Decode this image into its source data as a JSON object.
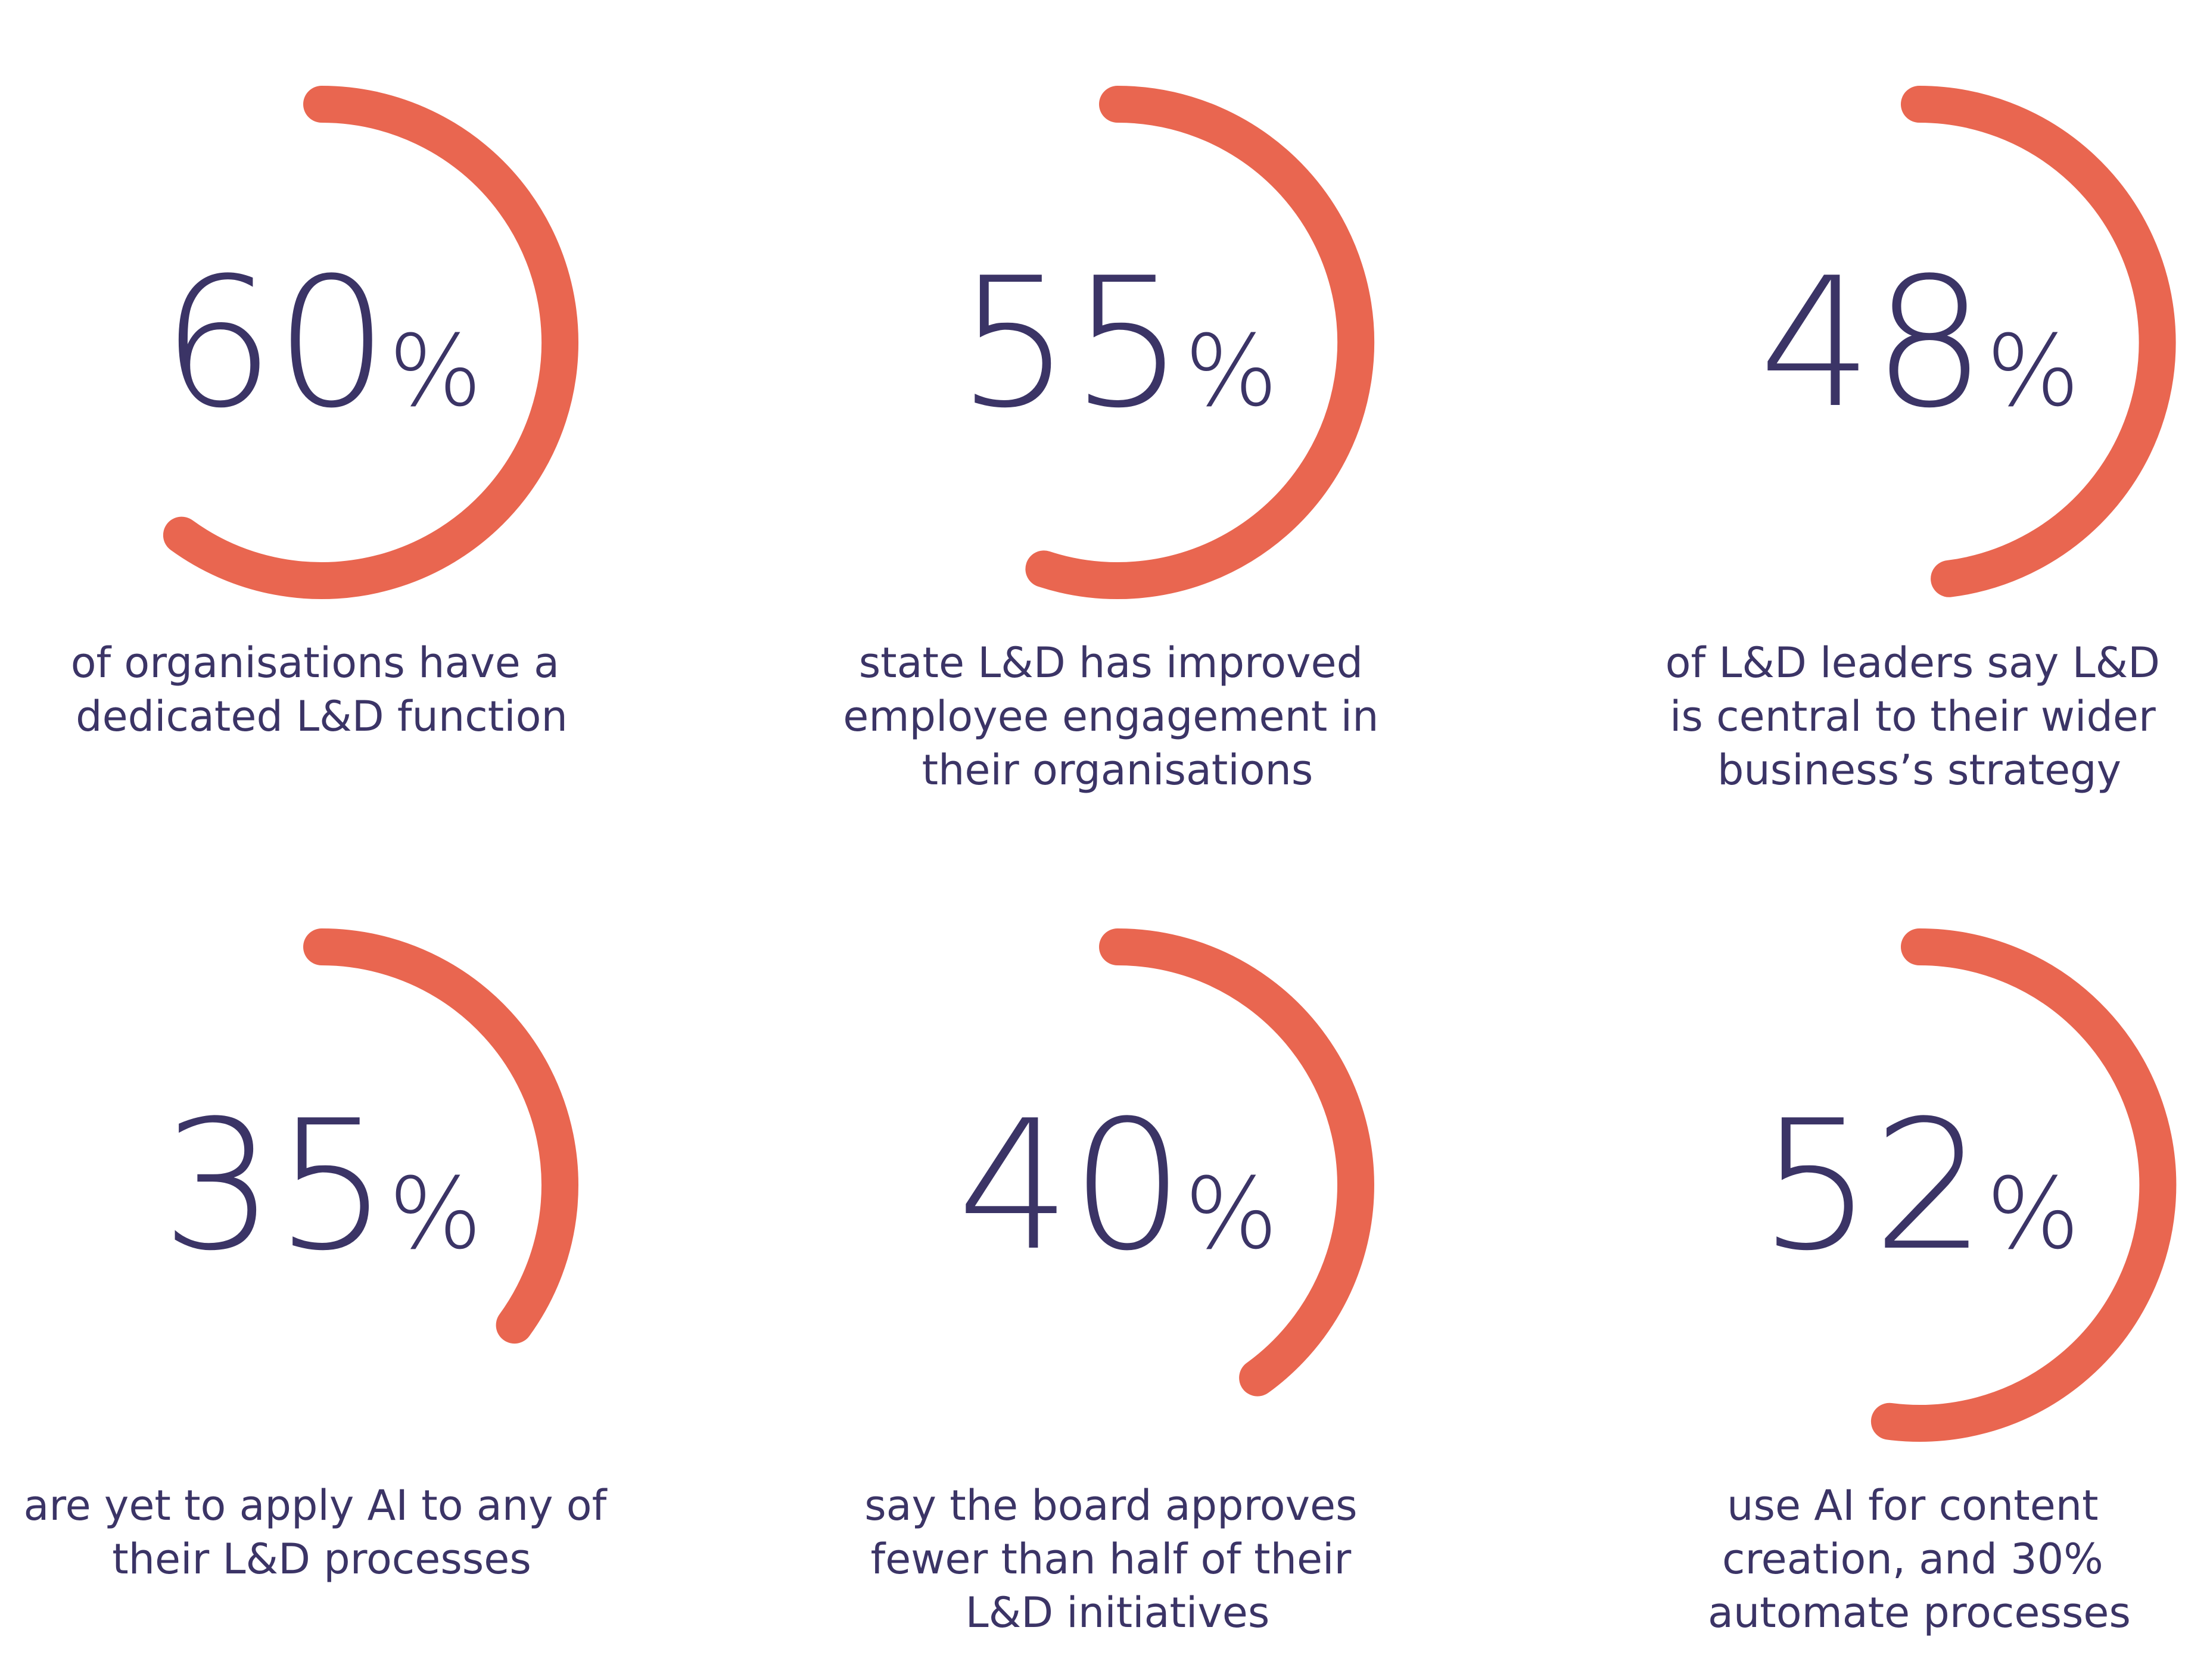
{
  "colors": {
    "arc": "#e96650",
    "text": "#3b3466",
    "background": "#ffffff"
  },
  "chart_data": {
    "type": "radial-progress",
    "unit": "%",
    "items": [
      {
        "value": 60,
        "value_label": "60",
        "percent_sign": "%",
        "caption": [
          "of organisations have a",
          "dedicated L&D function"
        ]
      },
      {
        "value": 55,
        "value_label": "55",
        "percent_sign": "%",
        "caption": [
          "state L&D has improved",
          "employee engagement in",
          "their organisations"
        ]
      },
      {
        "value": 48,
        "value_label": "48",
        "percent_sign": "%",
        "caption": [
          "of L&D leaders say L&D",
          "is central to their wider",
          "business’s strategy"
        ]
      },
      {
        "value": 35,
        "value_label": "35",
        "percent_sign": "%",
        "caption": [
          "are yet to apply AI to any of",
          "their L&D processes"
        ]
      },
      {
        "value": 40,
        "value_label": "40",
        "percent_sign": "%",
        "caption": [
          "say the board approves",
          "fewer than half of their",
          "L&D initiatives"
        ]
      },
      {
        "value": 52,
        "value_label": "52",
        "percent_sign": "%",
        "caption": [
          "use AI for content",
          "creation, and 30%",
          "automate processes"
        ]
      }
    ]
  }
}
